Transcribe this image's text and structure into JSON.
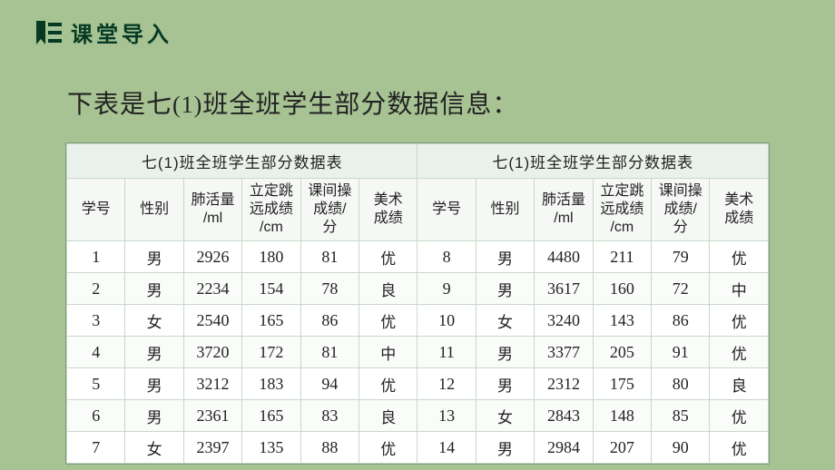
{
  "header": {
    "title": "课堂导入"
  },
  "subtitle_pre": "下表是七",
  "subtitle_num": "(1)",
  "subtitle_post": "班全班学生部分数据信息：",
  "table": {
    "caption_left": "七(1)班全班学生部分数据表",
    "caption_right": "七(1)班全班学生部分数据表",
    "headers": {
      "id": "学号",
      "gender": "性别",
      "lung": "肺活量/ml",
      "jump": "立定跳远成绩/cm",
      "break_score": "课间操成绩/分",
      "art": "美术成绩"
    },
    "rows_left": [
      {
        "id": "1",
        "gender": "男",
        "lung": "2926",
        "jump": "180",
        "break": "81",
        "art": "优"
      },
      {
        "id": "2",
        "gender": "男",
        "lung": "2234",
        "jump": "154",
        "break": "78",
        "art": "良"
      },
      {
        "id": "3",
        "gender": "女",
        "lung": "2540",
        "jump": "165",
        "break": "86",
        "art": "优"
      },
      {
        "id": "4",
        "gender": "男",
        "lung": "3720",
        "jump": "172",
        "break": "81",
        "art": "中"
      },
      {
        "id": "5",
        "gender": "男",
        "lung": "3212",
        "jump": "183",
        "break": "94",
        "art": "优"
      },
      {
        "id": "6",
        "gender": "男",
        "lung": "2361",
        "jump": "165",
        "break": "83",
        "art": "良"
      },
      {
        "id": "7",
        "gender": "女",
        "lung": "2397",
        "jump": "135",
        "break": "88",
        "art": "优"
      }
    ],
    "rows_right": [
      {
        "id": "8",
        "gender": "男",
        "lung": "4480",
        "jump": "211",
        "break": "79",
        "art": "优"
      },
      {
        "id": "9",
        "gender": "男",
        "lung": "3617",
        "jump": "160",
        "break": "72",
        "art": "中"
      },
      {
        "id": "10",
        "gender": "女",
        "lung": "3240",
        "jump": "143",
        "break": "86",
        "art": "优"
      },
      {
        "id": "11",
        "gender": "男",
        "lung": "3377",
        "jump": "205",
        "break": "91",
        "art": "优"
      },
      {
        "id": "12",
        "gender": "男",
        "lung": "2312",
        "jump": "175",
        "break": "80",
        "art": "良"
      },
      {
        "id": "13",
        "gender": "女",
        "lung": "2843",
        "jump": "148",
        "break": "85",
        "art": "优"
      },
      {
        "id": "14",
        "gender": "男",
        "lung": "2984",
        "jump": "207",
        "break": "90",
        "art": "优"
      }
    ]
  },
  "style": {
    "page_bg": "#a7c293",
    "title_color": "#063a23",
    "icon_color": "#063a23",
    "table_border": "#7a9c7a",
    "cell_border": "#c9d8c9",
    "header_row_bg": "#eaf1ea",
    "subheader_bg": "#f5f8f5",
    "row_alt_bg": "#fafcfa",
    "text_color": "#222",
    "fonts": {
      "body": "Microsoft YaHei / SimSun",
      "numbers": "Times New Roman"
    }
  }
}
